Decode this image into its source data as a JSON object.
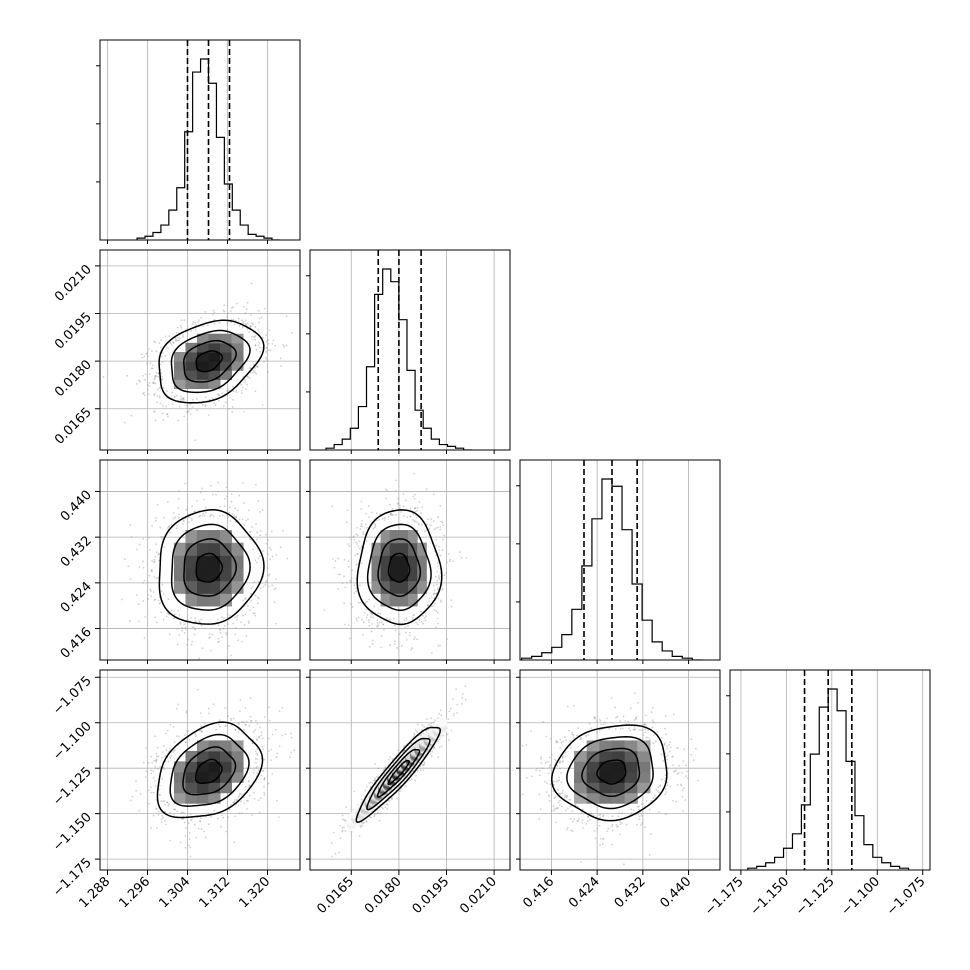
{
  "chart_data": {
    "type": "corner",
    "parameters": [
      {
        "ticks": [
          1.288,
          1.296,
          1.304,
          1.312,
          1.32
        ],
        "tick_labels": [
          "1.288",
          "1.296",
          "1.304",
          "1.312",
          "1.320"
        ],
        "range": [
          1.2865,
          1.3265
        ]
      },
      {
        "ticks": [
          0.0165,
          0.018,
          0.0195,
          0.021
        ],
        "tick_labels": [
          "0.0165",
          "0.0180",
          "0.0195",
          "0.0210"
        ],
        "range": [
          0.0152,
          0.0215
        ]
      },
      {
        "ticks": [
          0.416,
          0.424,
          0.432,
          0.44
        ],
        "tick_labels": [
          "0.416",
          "0.424",
          "0.432",
          "0.440"
        ],
        "range": [
          0.4105,
          0.4455
        ]
      },
      {
        "ticks": [
          -1.175,
          -1.15,
          -1.125,
          -1.1,
          -1.075
        ],
        "tick_labels": [
          "−1.175",
          "−1.150",
          "−1.125",
          "−1.100",
          "−1.075"
        ],
        "range": [
          -1.181,
          -1.071
        ]
      }
    ],
    "marginals": [
      {
        "quantiles": [
          1.304,
          1.3082,
          1.3124
        ],
        "counts": [
          1,
          2,
          4,
          8,
          16,
          28,
          58,
          90,
          97,
          84,
          55,
          30,
          16,
          8,
          3,
          2,
          1,
          0
        ]
      },
      {
        "quantiles": [
          0.01735,
          0.018,
          0.0187
        ],
        "counts": [
          1,
          3,
          6,
          12,
          24,
          46,
          86,
          100,
          93,
          72,
          44,
          22,
          12,
          6,
          3,
          2,
          1,
          0
        ]
      },
      {
        "quantiles": [
          0.4217,
          0.4266,
          0.431
        ],
        "counts": [
          1,
          2,
          4,
          7,
          14,
          28,
          52,
          78,
          100,
          96,
          72,
          42,
          22,
          10,
          5,
          2,
          1,
          0
        ]
      },
      {
        "quantiles": [
          -1.14,
          -1.127,
          -1.114
        ],
        "counts": [
          1,
          2,
          4,
          7,
          12,
          20,
          36,
          64,
          90,
          100,
          88,
          60,
          30,
          14,
          7,
          4,
          2,
          1
        ]
      }
    ],
    "joints": [
      {
        "row": 1,
        "col": 0,
        "center": [
          1.3082,
          0.018
        ],
        "sigma": [
          0.0052,
          0.00065
        ],
        "rho": 0.3
      },
      {
        "row": 2,
        "col": 0,
        "center": [
          1.3082,
          0.4266
        ],
        "sigma": [
          0.0052,
          0.005
        ],
        "rho": 0.05
      },
      {
        "row": 2,
        "col": 1,
        "center": [
          0.018,
          0.4266
        ],
        "sigma": [
          0.00065,
          0.005
        ],
        "rho": 0.0
      },
      {
        "row": 3,
        "col": 0,
        "center": [
          1.3082,
          -1.127
        ],
        "sigma": [
          0.0052,
          0.013
        ],
        "rho": 0.3
      },
      {
        "row": 3,
        "col": 1,
        "center": [
          0.018,
          -1.127
        ],
        "sigma": [
          0.00065,
          0.013
        ],
        "rho": 0.93
      },
      {
        "row": 3,
        "col": 2,
        "center": [
          0.4266,
          -1.127
        ],
        "sigma": [
          0.005,
          0.013
        ],
        "rho": 0.1
      }
    ],
    "contour_levels_sigma": [
      0.5,
      1.0,
      1.5,
      2.0
    ],
    "grid": true,
    "colors": {
      "line": "#000000",
      "grid": "#b0b0b0",
      "points": "#9a9a9a"
    }
  }
}
